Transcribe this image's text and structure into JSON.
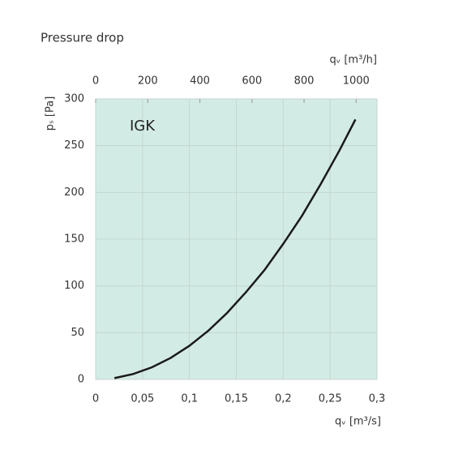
{
  "chart_data": {
    "type": "line",
    "title": "Pressure drop",
    "annotation": "IGK",
    "x_label": "qᵥ [m³/s]",
    "x2_label": "qᵥ [m³/h]",
    "y_label": "pₛ [Pa]",
    "x": [
      0.02,
      0.04,
      0.06,
      0.08,
      0.1,
      0.12,
      0.14,
      0.16,
      0.18,
      0.2,
      0.22,
      0.24,
      0.26,
      0.277
    ],
    "series": [
      {
        "color": "#1a1a1a",
        "values": [
          1.4,
          5.8,
          13,
          23,
          36,
          52,
          71,
          93,
          117,
          145,
          175,
          209,
          245,
          278
        ]
      }
    ],
    "xlim": [
      0,
      0.3
    ],
    "xticks": [
      0,
      {
        "value": 0.05,
        "label": "0,05"
      },
      {
        "value": 0.1,
        "label": "0,1"
      },
      {
        "value": 0.15,
        "label": "0,15"
      },
      {
        "value": 0.2,
        "label": "0,2"
      },
      {
        "value": 0.25,
        "label": "0,25"
      },
      {
        "value": 0.3,
        "label": "0,3"
      }
    ],
    "x2lim": [
      0,
      1080
    ],
    "x2ticks": [
      0,
      200,
      400,
      600,
      800,
      1000
    ],
    "ylim": [
      0,
      300
    ],
    "yticks": [
      0,
      50,
      100,
      150,
      200,
      250,
      300
    ],
    "grid": true,
    "background": "#d3ebe5"
  }
}
